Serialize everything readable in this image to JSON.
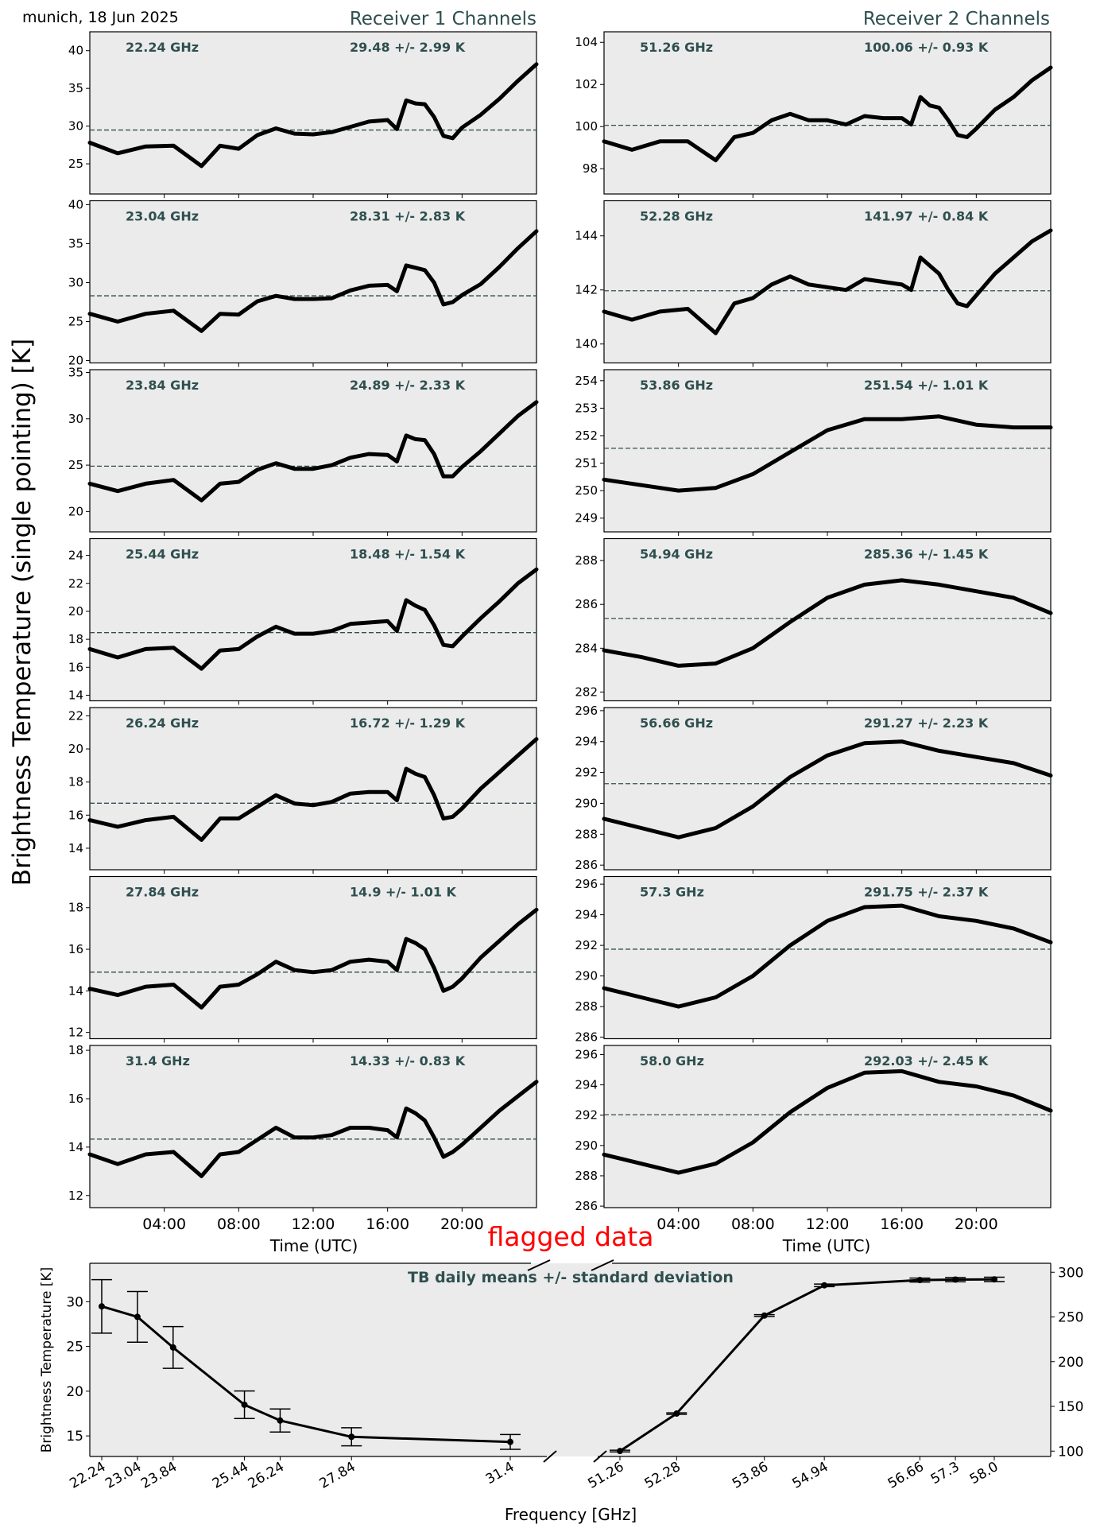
{
  "header": {
    "location_date": "munich, 18 Jun 2025",
    "receiver1_title": "Receiver 1 Channels",
    "receiver2_title": "Receiver 2 Channels",
    "ylabel": "Brightness Temperature (single pointing) [K]",
    "time_xlabel": "Time (UTC)",
    "flag_text": "flagged data"
  },
  "colors": {
    "panel_bg": "#ebebeb",
    "annotation": "#2f4f4f",
    "trace": "#000000",
    "flag": "#ff0000",
    "mean_line": "#2f4f4f"
  },
  "time_ticks": [
    "04:00",
    "08:00",
    "12:00",
    "16:00",
    "20:00"
  ],
  "chart_data": [
    {
      "type": "line",
      "receiver": 1,
      "freq_label": "22.24 GHz",
      "stats_label": "29.48 +/- 2.99 K",
      "mean": 29.48,
      "ylim": [
        21,
        42.5
      ],
      "yticks": [
        25,
        30,
        35,
        40
      ],
      "x": [
        0,
        1.5,
        3,
        4.5,
        6,
        7,
        8,
        9,
        10,
        11,
        12,
        13,
        14,
        15,
        16,
        16.5,
        17,
        17.5,
        18,
        18.5,
        19,
        19.5,
        20,
        21,
        22,
        23,
        24
      ],
      "y": [
        27.8,
        26.4,
        27.3,
        27.4,
        24.7,
        27.4,
        27.0,
        28.8,
        29.7,
        29.0,
        28.9,
        29.2,
        29.9,
        30.6,
        30.8,
        29.6,
        33.4,
        33.0,
        32.9,
        31.2,
        28.7,
        28.4,
        29.8,
        31.5,
        33.6,
        36.0,
        38.2
      ]
    },
    {
      "type": "line",
      "receiver": 1,
      "freq_label": "23.04 GHz",
      "stats_label": "28.31 +/- 2.83 K",
      "mean": 28.31,
      "ylim": [
        19.7,
        40.5
      ],
      "yticks": [
        20,
        25,
        30,
        35,
        40
      ],
      "x": [
        0,
        1.5,
        3,
        4.5,
        6,
        7,
        8,
        9,
        10,
        11,
        12,
        13,
        14,
        15,
        16,
        16.5,
        17,
        17.5,
        18,
        18.5,
        19,
        19.5,
        20,
        21,
        22,
        23,
        24
      ],
      "y": [
        26.0,
        25.0,
        26.0,
        26.4,
        23.8,
        26.0,
        25.9,
        27.6,
        28.3,
        27.9,
        27.9,
        28.0,
        29.0,
        29.6,
        29.7,
        28.9,
        32.2,
        31.9,
        31.6,
        30.0,
        27.2,
        27.5,
        28.4,
        29.8,
        32.0,
        34.4,
        36.6
      ]
    },
    {
      "type": "line",
      "receiver": 1,
      "freq_label": "23.84 GHz",
      "stats_label": "24.89 +/- 2.33 K",
      "mean": 24.89,
      "ylim": [
        17.8,
        35.3
      ],
      "yticks": [
        20,
        25,
        30,
        35
      ],
      "x": [
        0,
        1.5,
        3,
        4.5,
        6,
        7,
        8,
        9,
        10,
        11,
        12,
        13,
        14,
        15,
        16,
        16.5,
        17,
        17.5,
        18,
        18.5,
        19,
        19.5,
        20,
        21,
        22,
        23,
        24
      ],
      "y": [
        23.0,
        22.2,
        23.0,
        23.4,
        21.2,
        23.0,
        23.2,
        24.5,
        25.2,
        24.6,
        24.6,
        25.0,
        25.8,
        26.2,
        26.1,
        25.4,
        28.2,
        27.8,
        27.7,
        26.2,
        23.8,
        23.8,
        24.8,
        26.5,
        28.4,
        30.3,
        31.8
      ]
    },
    {
      "type": "line",
      "receiver": 1,
      "freq_label": "25.44 GHz",
      "stats_label": "18.48 +/- 1.54 K",
      "mean": 18.48,
      "ylim": [
        13.6,
        25.2
      ],
      "yticks": [
        14,
        16,
        18,
        20,
        22,
        24
      ],
      "x": [
        0,
        1.5,
        3,
        4.5,
        6,
        7,
        8,
        9,
        10,
        11,
        12,
        13,
        14,
        15,
        16,
        16.5,
        17,
        17.5,
        18,
        18.5,
        19,
        19.5,
        20,
        21,
        22,
        23,
        24
      ],
      "y": [
        17.3,
        16.7,
        17.3,
        17.4,
        15.9,
        17.2,
        17.3,
        18.2,
        18.9,
        18.4,
        18.4,
        18.6,
        19.1,
        19.2,
        19.3,
        18.6,
        20.8,
        20.4,
        20.1,
        19.0,
        17.6,
        17.5,
        18.2,
        19.5,
        20.7,
        22.0,
        23.0
      ]
    },
    {
      "type": "line",
      "receiver": 1,
      "freq_label": "26.24 GHz",
      "stats_label": "16.72 +/- 1.29 K",
      "mean": 16.72,
      "ylim": [
        12.7,
        22.5
      ],
      "yticks": [
        14,
        16,
        18,
        20,
        22
      ],
      "x": [
        0,
        1.5,
        3,
        4.5,
        6,
        7,
        8,
        9,
        10,
        11,
        12,
        13,
        14,
        15,
        16,
        16.5,
        17,
        17.5,
        18,
        18.5,
        19,
        19.5,
        20,
        21,
        22,
        23,
        24
      ],
      "y": [
        15.7,
        15.3,
        15.7,
        15.9,
        14.5,
        15.8,
        15.8,
        16.5,
        17.2,
        16.7,
        16.6,
        16.8,
        17.3,
        17.4,
        17.4,
        16.9,
        18.8,
        18.5,
        18.3,
        17.2,
        15.8,
        15.9,
        16.4,
        17.6,
        18.6,
        19.6,
        20.6
      ]
    },
    {
      "type": "line",
      "receiver": 1,
      "freq_label": "27.84 GHz",
      "stats_label": "14.9 +/- 1.01 K",
      "mean": 14.9,
      "ylim": [
        11.7,
        19.5
      ],
      "yticks": [
        12,
        14,
        16,
        18
      ],
      "x": [
        0,
        1.5,
        3,
        4.5,
        6,
        7,
        8,
        9,
        10,
        11,
        12,
        13,
        14,
        15,
        16,
        16.5,
        17,
        17.5,
        18,
        18.5,
        19,
        19.5,
        20,
        21,
        22,
        23,
        24
      ],
      "y": [
        14.1,
        13.8,
        14.2,
        14.3,
        13.2,
        14.2,
        14.3,
        14.8,
        15.4,
        15.0,
        14.9,
        15.0,
        15.4,
        15.5,
        15.4,
        15.0,
        16.5,
        16.3,
        16.0,
        15.1,
        14.0,
        14.2,
        14.6,
        15.6,
        16.4,
        17.2,
        17.9
      ]
    },
    {
      "type": "line",
      "receiver": 1,
      "freq_label": "31.4 GHz",
      "stats_label": "14.33 +/- 0.83 K",
      "mean": 14.33,
      "ylim": [
        11.5,
        18.2
      ],
      "yticks": [
        12,
        14,
        16,
        18
      ],
      "x": [
        0,
        1.5,
        3,
        4.5,
        6,
        7,
        8,
        9,
        10,
        11,
        12,
        13,
        14,
        15,
        16,
        16.5,
        17,
        17.5,
        18,
        18.5,
        19,
        19.5,
        20,
        21,
        22,
        23,
        24
      ],
      "y": [
        13.7,
        13.3,
        13.7,
        13.8,
        12.8,
        13.7,
        13.8,
        14.3,
        14.8,
        14.4,
        14.4,
        14.5,
        14.8,
        14.8,
        14.7,
        14.4,
        15.6,
        15.4,
        15.1,
        14.4,
        13.6,
        13.8,
        14.1,
        14.8,
        15.5,
        16.1,
        16.7
      ]
    },
    {
      "type": "line",
      "receiver": 2,
      "freq_label": "51.26 GHz",
      "stats_label": "100.06 +/- 0.93 K",
      "mean": 100.06,
      "ylim": [
        96.8,
        104.5
      ],
      "yticks": [
        98,
        100,
        102,
        104
      ],
      "x": [
        0,
        1.5,
        3,
        4.5,
        6,
        7,
        8,
        9,
        10,
        11,
        12,
        13,
        14,
        15,
        16,
        16.5,
        17,
        17.5,
        18,
        18.5,
        19,
        19.5,
        20,
        21,
        22,
        23,
        24
      ],
      "y": [
        99.3,
        98.9,
        99.3,
        99.3,
        98.4,
        99.5,
        99.7,
        100.3,
        100.6,
        100.3,
        100.3,
        100.1,
        100.5,
        100.4,
        100.4,
        100.1,
        101.4,
        101.0,
        100.9,
        100.3,
        99.6,
        99.5,
        99.9,
        100.8,
        101.4,
        102.2,
        102.8
      ]
    },
    {
      "type": "line",
      "receiver": 2,
      "freq_label": "52.28 GHz",
      "stats_label": "141.97 +/- 0.84 K",
      "mean": 141.97,
      "ylim": [
        139.3,
        145.3
      ],
      "yticks": [
        140,
        142,
        144
      ],
      "x": [
        0,
        1.5,
        3,
        4.5,
        6,
        7,
        8,
        9,
        10,
        11,
        12,
        13,
        14,
        15,
        16,
        16.5,
        17,
        17.5,
        18,
        18.5,
        19,
        19.5,
        20,
        21,
        22,
        23,
        24
      ],
      "y": [
        141.2,
        140.9,
        141.2,
        141.3,
        140.4,
        141.5,
        141.7,
        142.2,
        142.5,
        142.2,
        142.1,
        142.0,
        142.4,
        142.3,
        142.2,
        142.0,
        143.2,
        142.9,
        142.6,
        142.0,
        141.5,
        141.4,
        141.8,
        142.6,
        143.2,
        143.8,
        144.2
      ]
    },
    {
      "type": "line",
      "receiver": 2,
      "freq_label": "53.86 GHz",
      "stats_label": "251.54 +/- 1.01 K",
      "mean": 251.54,
      "ylim": [
        248.5,
        254.4
      ],
      "yticks": [
        249,
        250,
        251,
        252,
        253,
        254
      ],
      "x": [
        0,
        2,
        4,
        6,
        8,
        10,
        12,
        14,
        16,
        18,
        20,
        22,
        24
      ],
      "y": [
        250.4,
        250.2,
        250.0,
        250.1,
        250.6,
        251.4,
        252.2,
        252.6,
        252.6,
        252.7,
        252.4,
        252.3,
        252.3
      ]
    },
    {
      "type": "line",
      "receiver": 2,
      "freq_label": "54.94 GHz",
      "stats_label": "285.36 +/- 1.45 K",
      "mean": 285.36,
      "ylim": [
        281.6,
        289.0
      ],
      "yticks": [
        282,
        284,
        286,
        288
      ],
      "x": [
        0,
        2,
        4,
        6,
        8,
        10,
        12,
        14,
        16,
        18,
        20,
        22,
        24
      ],
      "y": [
        283.9,
        283.6,
        283.2,
        283.3,
        284.0,
        285.2,
        286.3,
        286.9,
        287.1,
        286.9,
        286.6,
        286.3,
        285.6
      ]
    },
    {
      "type": "line",
      "receiver": 2,
      "freq_label": "56.66 GHz",
      "stats_label": "291.27 +/- 2.23 K",
      "mean": 291.27,
      "ylim": [
        285.7,
        296.2
      ],
      "yticks": [
        286,
        288,
        290,
        292,
        294,
        296
      ],
      "x": [
        0,
        2,
        4,
        6,
        8,
        10,
        12,
        14,
        16,
        18,
        20,
        22,
        24
      ],
      "y": [
        289.0,
        288.4,
        287.8,
        288.4,
        289.8,
        291.7,
        293.1,
        293.9,
        294.0,
        293.4,
        293.0,
        292.6,
        291.8
      ]
    },
    {
      "type": "line",
      "receiver": 2,
      "freq_label": "57.3 GHz",
      "stats_label": "291.75 +/- 2.37 K",
      "mean": 291.75,
      "ylim": [
        285.9,
        296.5
      ],
      "yticks": [
        286,
        288,
        290,
        292,
        294,
        296
      ],
      "x": [
        0,
        2,
        4,
        6,
        8,
        10,
        12,
        14,
        16,
        18,
        20,
        22,
        24
      ],
      "y": [
        289.2,
        288.6,
        288.0,
        288.6,
        290.0,
        292.0,
        293.6,
        294.5,
        294.6,
        293.9,
        293.6,
        293.1,
        292.2
      ]
    },
    {
      "type": "line",
      "receiver": 2,
      "freq_label": "58.0 GHz",
      "stats_label": "292.03 +/- 2.45 K",
      "mean": 292.03,
      "ylim": [
        285.9,
        296.6
      ],
      "yticks": [
        286,
        288,
        290,
        292,
        294,
        296
      ],
      "x": [
        0,
        2,
        4,
        6,
        8,
        10,
        12,
        14,
        16,
        18,
        20,
        22,
        24
      ],
      "y": [
        289.4,
        288.8,
        288.2,
        288.8,
        290.2,
        292.2,
        293.8,
        294.8,
        294.9,
        294.2,
        293.9,
        293.3,
        292.3
      ]
    },
    {
      "type": "line",
      "title": "TB daily means +/- standard deviation",
      "xlabel": "Frequency [GHz]",
      "ylabel": "Brightness Temperature [K]",
      "receiver1": {
        "x": [
          22.24,
          23.04,
          23.84,
          25.44,
          26.24,
          27.84,
          31.4
        ],
        "x_labels": [
          "22.24",
          "23.04",
          "23.84",
          "25.44",
          "26.24",
          "27.84",
          "31.4"
        ],
        "mean": [
          29.48,
          28.31,
          24.89,
          18.48,
          16.72,
          14.9,
          14.33
        ],
        "std": [
          2.99,
          2.83,
          2.33,
          1.54,
          1.29,
          1.01,
          0.83
        ],
        "ylim": [
          12.7,
          34.3
        ],
        "yticks": [
          15,
          20,
          25,
          30
        ]
      },
      "receiver2": {
        "x": [
          51.26,
          52.28,
          53.86,
          54.94,
          56.66,
          57.3,
          58.0
        ],
        "x_labels": [
          "51.26",
          "52.28",
          "53.86",
          "54.94",
          "56.66",
          "57.3",
          "58.0"
        ],
        "mean": [
          100.06,
          141.97,
          251.54,
          285.36,
          291.27,
          291.75,
          292.03
        ],
        "std": [
          0.93,
          0.84,
          1.01,
          1.45,
          2.23,
          2.37,
          2.45
        ],
        "ylim": [
          94,
          310
        ],
        "yticks": [
          100,
          150,
          200,
          250,
          300
        ]
      }
    }
  ]
}
